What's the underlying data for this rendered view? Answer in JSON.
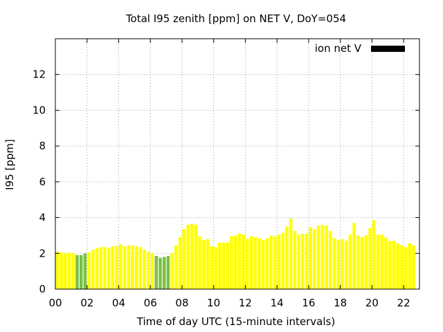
{
  "chart_data": {
    "type": "bar",
    "title": "Total I95 zenith [ppm] on NET V, DoY=054",
    "xlabel": "Time of day UTC (15-minute intervals)",
    "ylabel": "I95 [ppm]",
    "xlim": [
      0,
      23
    ],
    "ylim": [
      0,
      14
    ],
    "x_ticks": [
      "00",
      "02",
      "04",
      "06",
      "08",
      "10",
      "12",
      "14",
      "16",
      "18",
      "20",
      "22"
    ],
    "x_tick_values": [
      0,
      2,
      4,
      6,
      8,
      10,
      12,
      14,
      16,
      18,
      20,
      22
    ],
    "y_ticks": [
      0,
      2,
      4,
      6,
      8,
      10,
      12
    ],
    "grid": true,
    "legend": {
      "label": "ion net V",
      "swatch_color": "#000000",
      "position": "top-right"
    },
    "bar_interval_hours": 0.25,
    "colors": {
      "normal": "#ffff00",
      "low": "#7ac143"
    },
    "series": [
      {
        "x": [
          0.0,
          0.25,
          0.5,
          0.75,
          1.0,
          1.25,
          1.5,
          1.75,
          2.0,
          2.25,
          2.5,
          2.75,
          3.0,
          3.25,
          3.5,
          3.75,
          4.0,
          4.25,
          4.5,
          4.75,
          5.0,
          5.25,
          5.5,
          5.75,
          6.0,
          6.25,
          6.5,
          6.75,
          7.0,
          7.25,
          7.5,
          7.75,
          8.0,
          8.25,
          8.5,
          8.75,
          9.0,
          9.25,
          9.5,
          9.75,
          10.0,
          10.25,
          10.5,
          10.75,
          11.0,
          11.25,
          11.5,
          11.75,
          12.0,
          12.25,
          12.5,
          12.75,
          13.0,
          13.25,
          13.5,
          13.75,
          14.0,
          14.25,
          14.5,
          14.75,
          15.0,
          15.25,
          15.5,
          15.75,
          16.0,
          16.25,
          16.5,
          16.75,
          17.0,
          17.25,
          17.5,
          17.75,
          18.0,
          18.25,
          18.5,
          18.75,
          19.0,
          19.25,
          19.5,
          19.75,
          20.0,
          20.25,
          20.5,
          20.75,
          21.0,
          21.25,
          21.5,
          21.75,
          22.0,
          22.25,
          22.5
        ],
        "values": [
          2.1,
          2.05,
          2.0,
          2.05,
          2.0,
          1.9,
          1.9,
          2.0,
          2.05,
          2.2,
          2.3,
          2.35,
          2.35,
          2.3,
          2.4,
          2.4,
          2.5,
          2.4,
          2.45,
          2.45,
          2.4,
          2.35,
          2.2,
          2.1,
          2.0,
          1.85,
          1.75,
          1.8,
          1.85,
          2.0,
          2.45,
          2.9,
          3.35,
          3.6,
          3.65,
          3.6,
          2.95,
          2.75,
          2.8,
          2.4,
          2.35,
          2.6,
          2.6,
          2.6,
          2.95,
          3.0,
          3.1,
          3.05,
          2.8,
          2.95,
          2.9,
          2.85,
          2.75,
          2.85,
          3.0,
          2.95,
          3.05,
          3.15,
          3.5,
          3.95,
          3.25,
          3.05,
          3.1,
          3.1,
          3.45,
          3.35,
          3.55,
          3.6,
          3.55,
          3.25,
          2.85,
          2.75,
          2.8,
          2.7,
          3.05,
          3.7,
          3.0,
          2.9,
          3.0,
          3.4,
          3.85,
          3.05,
          3.05,
          2.9,
          2.7,
          2.7,
          2.55,
          2.45,
          2.35,
          2.55,
          2.45
        ],
        "highlight_indices": [
          5,
          6,
          7,
          25,
          26,
          27,
          28
        ]
      }
    ]
  }
}
